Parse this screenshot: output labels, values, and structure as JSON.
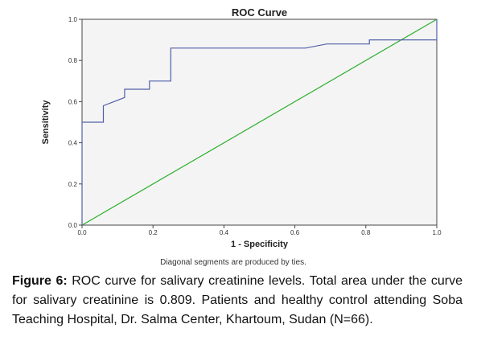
{
  "chart_data": {
    "type": "line",
    "title": "ROC Curve",
    "xlabel": "1 - Specificity",
    "ylabel": "Sensitivity",
    "xlim": [
      0.0,
      1.0
    ],
    "ylim": [
      0.0,
      1.0
    ],
    "xticks": [
      "0.0",
      "0.2",
      "0.4",
      "0.6",
      "0.8",
      "1.0"
    ],
    "yticks": [
      "0.0",
      "0.2",
      "0.4",
      "0.6",
      "0.8",
      "1.0"
    ],
    "grid": false,
    "note": "Diagonal segments are produced by ties.",
    "series": [
      {
        "color": "#5060a8",
        "x": [
          0.0,
          0.0,
          0.06,
          0.06,
          0.12,
          0.12,
          0.19,
          0.19,
          0.25,
          0.25,
          0.63,
          0.69,
          0.81,
          0.81,
          1.0,
          1.0
        ],
        "y": [
          0.0,
          0.5,
          0.5,
          0.58,
          0.62,
          0.66,
          0.66,
          0.7,
          0.7,
          0.86,
          0.86,
          0.88,
          0.88,
          0.9,
          0.9,
          1.0
        ]
      },
      {
        "color": "#2aae2a",
        "x": [
          0.0,
          1.0
        ],
        "y": [
          0.0,
          1.0
        ]
      }
    ],
    "plot_background": "#f4f4f4"
  },
  "caption": {
    "label": "Figure 6:",
    "text": " ROC curve for salivary creatinine levels. Total area under the curve for salivary creatinine is 0.809. Patients and healthy control attending Soba Teaching Hospital, Dr. Salma Center, Khartoum, Sudan (N=66)."
  }
}
